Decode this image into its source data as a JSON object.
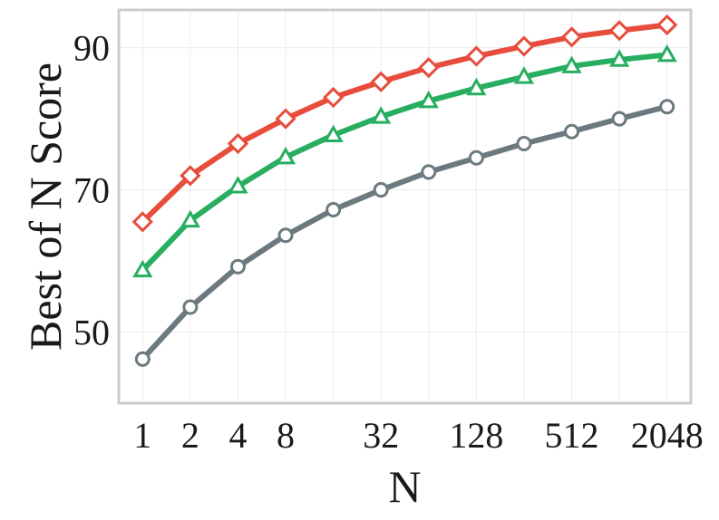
{
  "chart_data": {
    "type": "line",
    "xlabel": "N",
    "ylabel": "Best of N Score",
    "x_scale": "log2",
    "x": [
      1,
      2,
      4,
      8,
      16,
      32,
      64,
      128,
      256,
      512,
      1024,
      2048
    ],
    "xticks": [
      1,
      2,
      4,
      8,
      32,
      128,
      512,
      2048
    ],
    "xtick_labels": [
      "1",
      "2",
      "4",
      "8",
      "32",
      "128",
      "512",
      "2048"
    ],
    "yticks": [
      50,
      70,
      90
    ],
    "ytick_labels": [
      "50",
      "70",
      "90"
    ],
    "ylim": [
      40,
      95.3
    ],
    "xlim_log2": [
      -0.5,
      11.5
    ],
    "grid": true,
    "series": [
      {
        "color": "#e74c3c",
        "marker": "diamond",
        "values": [
          65.5,
          72.0,
          76.5,
          80.0,
          83.0,
          85.2,
          87.2,
          88.8,
          90.2,
          91.5,
          92.4,
          93.2
        ]
      },
      {
        "color": "#27ae60",
        "marker": "triangle",
        "values": [
          58.7,
          65.7,
          70.5,
          74.6,
          77.7,
          80.3,
          82.5,
          84.3,
          85.9,
          87.4,
          88.3,
          89.0
        ]
      },
      {
        "color": "#6c7a7f",
        "marker": "circle",
        "values": [
          46.2,
          53.5,
          59.2,
          63.6,
          67.2,
          70.0,
          72.5,
          74.5,
          76.5,
          78.2,
          80.0,
          81.7
        ]
      }
    ]
  }
}
